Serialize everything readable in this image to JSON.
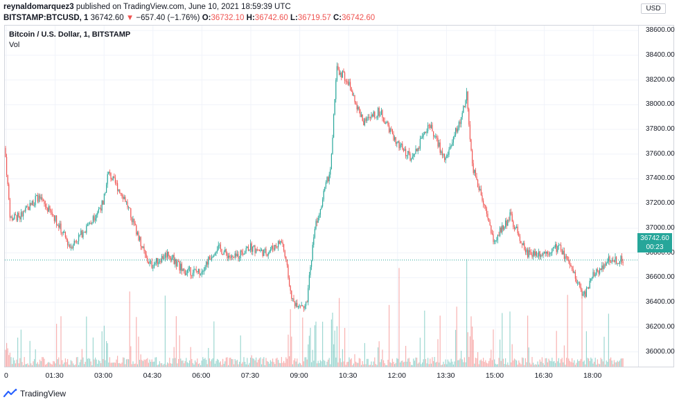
{
  "header": {
    "author": "reynaldomarquez3",
    "published": "published on TradingView.com, June 10, 2021 18:59:39 UTC",
    "symbol": "BITSTAMP:BTCUSD, 1",
    "last": "36742.60",
    "change_arrow": "▼",
    "change": "−657.40 (−1.76%)",
    "open_label": "O:",
    "open": "36732.10",
    "high_label": "H:",
    "high": "36742.60",
    "low_label": "L:",
    "low": "36719.57",
    "close_label": "C:",
    "close": "36742.60"
  },
  "legend": {
    "title": "Bitcoin / U.S. Dollar, 1, BITSTAMP",
    "volume": "Vol"
  },
  "currency_button": "USD",
  "price_tag": {
    "price": "36742.60",
    "countdown": "00:23"
  },
  "y_ticks": [
    "38600.00",
    "38400.00",
    "38200.00",
    "38000.00",
    "37800.00",
    "37600.00",
    "37400.00",
    "37200.00",
    "37000.00",
    "36800.00",
    "36600.00",
    "36400.00",
    "36200.00",
    "36000.00"
  ],
  "x_ticks": [
    "0",
    "01:30",
    "03:00",
    "04:30",
    "06:00",
    "07:30",
    "09:00",
    "10:30",
    "12:00",
    "13:30",
    "15:00",
    "16:30",
    "18:00"
  ],
  "brand": "TradingView",
  "colors": {
    "up": "#26a69a",
    "down": "#ef5350",
    "grid": "#f0f3fa",
    "last_price_line": "#26a69a"
  },
  "chart_data": {
    "type": "candlestick",
    "x_unit": "time (UTC)",
    "y_unit": "USD",
    "ylim": [
      35880,
      38640
    ],
    "keyframes": [
      {
        "t": "00:00",
        "price": 37650
      },
      {
        "t": "00:10",
        "price": 37080
      },
      {
        "t": "00:30",
        "price": 37100
      },
      {
        "t": "01:00",
        "price": 37250
      },
      {
        "t": "01:30",
        "price": 37100
      },
      {
        "t": "02:00",
        "price": 36850
      },
      {
        "t": "02:30",
        "price": 37000
      },
      {
        "t": "03:00",
        "price": 37200
      },
      {
        "t": "03:10",
        "price": 37450
      },
      {
        "t": "03:40",
        "price": 37250
      },
      {
        "t": "04:00",
        "price": 37000
      },
      {
        "t": "04:20",
        "price": 36750
      },
      {
        "t": "04:30",
        "price": 36700
      },
      {
        "t": "05:00",
        "price": 36800
      },
      {
        "t": "05:30",
        "price": 36650
      },
      {
        "t": "06:00",
        "price": 36650
      },
      {
        "t": "06:30",
        "price": 36850
      },
      {
        "t": "07:00",
        "price": 36750
      },
      {
        "t": "07:30",
        "price": 36850
      },
      {
        "t": "08:00",
        "price": 36800
      },
      {
        "t": "08:30",
        "price": 36900
      },
      {
        "t": "08:50",
        "price": 36400
      },
      {
        "t": "09:15",
        "price": 36380
      },
      {
        "t": "09:30",
        "price": 37000
      },
      {
        "t": "10:00",
        "price": 37500
      },
      {
        "t": "10:10",
        "price": 38300
      },
      {
        "t": "10:30",
        "price": 38200
      },
      {
        "t": "11:00",
        "price": 37850
      },
      {
        "t": "11:30",
        "price": 37950
      },
      {
        "t": "12:00",
        "price": 37700
      },
      {
        "t": "12:30",
        "price": 37550
      },
      {
        "t": "13:00",
        "price": 37850
      },
      {
        "t": "13:30",
        "price": 37550
      },
      {
        "t": "14:00",
        "price": 37900
      },
      {
        "t": "14:10",
        "price": 38100
      },
      {
        "t": "14:20",
        "price": 37500
      },
      {
        "t": "15:00",
        "price": 36900
      },
      {
        "t": "15:30",
        "price": 37100
      },
      {
        "t": "16:00",
        "price": 36800
      },
      {
        "t": "16:30",
        "price": 36800
      },
      {
        "t": "17:00",
        "price": 36850
      },
      {
        "t": "17:30",
        "price": 36600
      },
      {
        "t": "17:45",
        "price": 36450
      },
      {
        "t": "18:00",
        "price": 36600
      },
      {
        "t": "18:30",
        "price": 36750
      },
      {
        "t": "18:59",
        "price": 36742.6
      }
    ],
    "last_price": 36742.6,
    "volume_series": "per-candle volume bars, colored by candle direction"
  }
}
